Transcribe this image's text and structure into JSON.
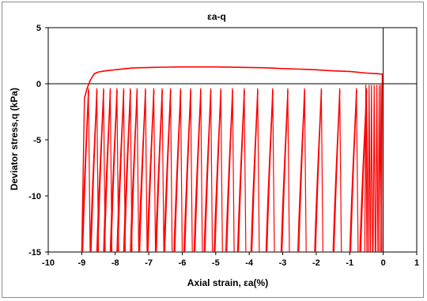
{
  "chart_data": {
    "type": "line",
    "title": "εa-q",
    "xlabel": "Axial strain, εa(%)",
    "ylabel": "Deviator stress,q (kPa)",
    "xlim": [
      -10,
      1
    ],
    "ylim": [
      -15,
      5
    ],
    "xticks": [
      "-10",
      "-9",
      "-8",
      "-7",
      "-6",
      "-5",
      "-4",
      "-3",
      "-2",
      "-1",
      "0",
      "1"
    ],
    "yticks": [
      "5",
      "0",
      "-5",
      "-10",
      "-15"
    ],
    "grid": false,
    "legend": "none",
    "series_color": "#ff0000",
    "series": [
      {
        "upper_envelope": {
          "x": [
            -8.92,
            -8.85,
            -8.75,
            -8.62,
            -8.5,
            -8.3,
            -8.0,
            -7.5,
            -7.0,
            -6.5,
            -6.0,
            -5.0,
            -4.0,
            -3.5,
            -3.0,
            -2.5,
            -2.0,
            -1.5,
            -1.0,
            -0.5,
            -0.2,
            0.0
          ],
          "y": [
            -1.3,
            -0.5,
            0.3,
            0.9,
            1.05,
            1.15,
            1.25,
            1.4,
            1.45,
            1.48,
            1.5,
            1.5,
            1.45,
            1.42,
            1.35,
            1.3,
            1.25,
            1.15,
            1.1,
            0.95,
            0.9,
            0.85
          ]
        },
        "cycles": {
          "peak_x": [
            -8.8,
            -8.55,
            -8.35,
            -8.15,
            -7.95,
            -7.75,
            -7.55,
            -7.35,
            -7.1,
            -6.85,
            -6.6,
            -6.35,
            -6.05,
            -5.75,
            -5.45,
            -5.15,
            -4.85,
            -4.5,
            -4.15,
            -3.75,
            -3.3,
            -2.85,
            -2.35,
            -1.85,
            -1.3,
            -0.8,
            -0.5
          ],
          "peak_y": -0.4,
          "min_y": -15,
          "loading_width": 0.2
        },
        "final_cluster_x": [
          -0.55,
          -0.45,
          -0.38,
          -0.3,
          -0.22,
          -0.15,
          -0.1
        ]
      }
    ]
  }
}
